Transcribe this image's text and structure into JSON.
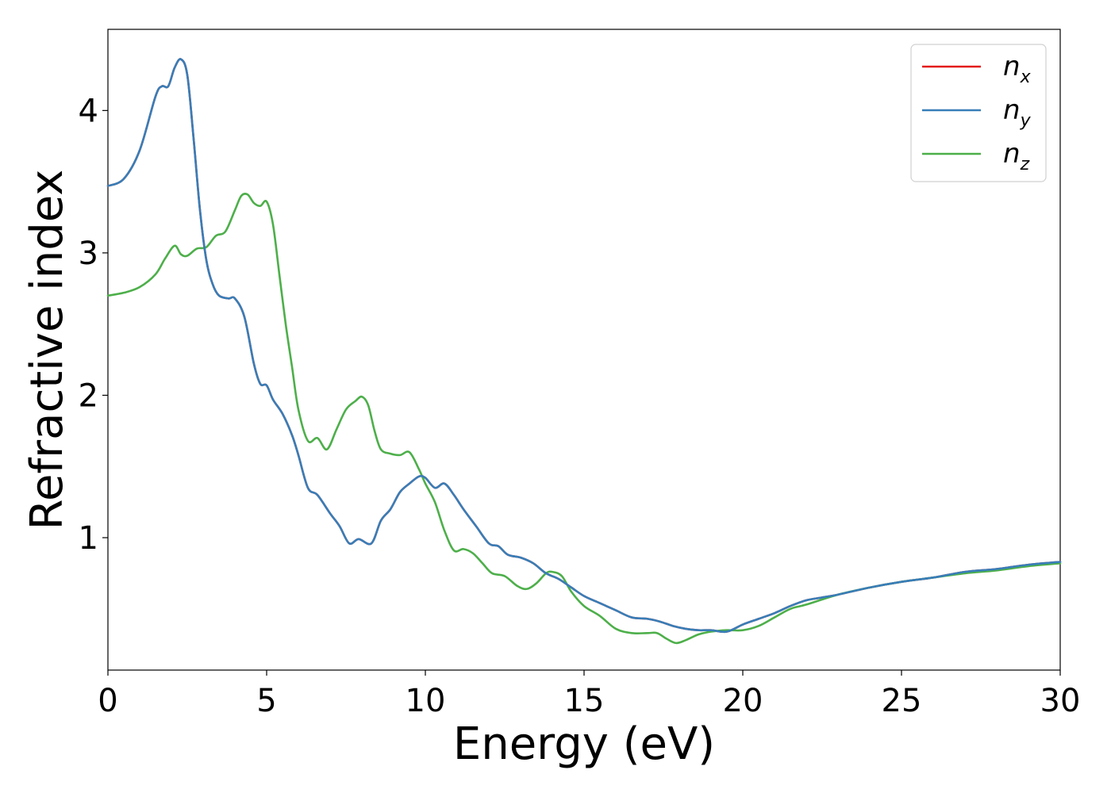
{
  "chart_data": {
    "type": "line",
    "xlabel": "Energy (eV)",
    "ylabel": "Refractive index",
    "xlim": [
      0,
      30
    ],
    "ylim": [
      0.07,
      4.57
    ],
    "xticks": [
      0,
      5,
      10,
      15,
      20,
      25,
      30
    ],
    "yticks": [
      1,
      2,
      3,
      4
    ],
    "grid": false,
    "legend_position": "top-right",
    "series": [
      {
        "name": "n_x",
        "label_base": "n",
        "label_sub": "x",
        "color": "#e41a1c",
        "x": [
          0,
          0.5,
          1.0,
          1.5,
          1.7,
          1.9,
          2.1,
          2.3,
          2.5,
          2.7,
          2.9,
          3.1,
          3.3,
          3.5,
          3.8,
          4.0,
          4.3,
          4.6,
          4.8,
          5.0,
          5.2,
          5.5,
          5.8,
          6.0,
          6.3,
          6.6,
          7.0,
          7.3,
          7.6,
          7.9,
          8.3,
          8.6,
          8.9,
          9.2,
          9.5,
          9.8,
          10.0,
          10.3,
          10.6,
          10.9,
          11.2,
          11.6,
          12.0,
          12.3,
          12.6,
          13.0,
          13.4,
          13.8,
          14.2,
          14.6,
          15.0,
          15.5,
          16.0,
          16.5,
          17.0,
          17.4,
          17.8,
          18.2,
          18.6,
          19.0,
          19.5,
          20.0,
          20.5,
          21.0,
          21.5,
          22.0,
          22.5,
          23.0,
          24.0,
          25.0,
          26.0,
          27.0,
          28.0,
          29.0,
          30.0
        ],
        "y": [
          3.47,
          3.52,
          3.72,
          4.1,
          4.17,
          4.17,
          4.3,
          4.36,
          4.25,
          3.8,
          3.3,
          2.95,
          2.78,
          2.7,
          2.68,
          2.68,
          2.55,
          2.22,
          2.08,
          2.07,
          1.97,
          1.87,
          1.72,
          1.58,
          1.35,
          1.3,
          1.17,
          1.08,
          0.96,
          0.99,
          0.96,
          1.12,
          1.2,
          1.32,
          1.38,
          1.43,
          1.42,
          1.35,
          1.38,
          1.3,
          1.2,
          1.08,
          0.96,
          0.94,
          0.88,
          0.86,
          0.82,
          0.75,
          0.71,
          0.65,
          0.59,
          0.54,
          0.49,
          0.44,
          0.43,
          0.41,
          0.38,
          0.36,
          0.35,
          0.35,
          0.34,
          0.39,
          0.43,
          0.47,
          0.52,
          0.56,
          0.58,
          0.6,
          0.65,
          0.69,
          0.72,
          0.76,
          0.78,
          0.81,
          0.83
        ]
      },
      {
        "name": "n_y",
        "label_base": "n",
        "label_sub": "y",
        "color": "#377eb8",
        "x": [
          0,
          0.5,
          1.0,
          1.5,
          1.7,
          1.9,
          2.1,
          2.3,
          2.5,
          2.7,
          2.9,
          3.1,
          3.3,
          3.5,
          3.8,
          4.0,
          4.3,
          4.6,
          4.8,
          5.0,
          5.2,
          5.5,
          5.8,
          6.0,
          6.3,
          6.6,
          7.0,
          7.3,
          7.6,
          7.9,
          8.3,
          8.6,
          8.9,
          9.2,
          9.5,
          9.8,
          10.0,
          10.3,
          10.6,
          10.9,
          11.2,
          11.6,
          12.0,
          12.3,
          12.6,
          13.0,
          13.4,
          13.8,
          14.2,
          14.6,
          15.0,
          15.5,
          16.0,
          16.5,
          17.0,
          17.4,
          17.8,
          18.2,
          18.6,
          19.0,
          19.5,
          20.0,
          20.5,
          21.0,
          21.5,
          22.0,
          22.5,
          23.0,
          24.0,
          25.0,
          26.0,
          27.0,
          28.0,
          29.0,
          30.0
        ],
        "y": [
          3.47,
          3.52,
          3.72,
          4.1,
          4.17,
          4.17,
          4.3,
          4.36,
          4.25,
          3.8,
          3.3,
          2.95,
          2.78,
          2.7,
          2.68,
          2.68,
          2.55,
          2.22,
          2.08,
          2.07,
          1.97,
          1.87,
          1.72,
          1.58,
          1.35,
          1.3,
          1.17,
          1.08,
          0.96,
          0.99,
          0.96,
          1.12,
          1.2,
          1.32,
          1.38,
          1.43,
          1.42,
          1.35,
          1.38,
          1.3,
          1.2,
          1.08,
          0.96,
          0.94,
          0.88,
          0.86,
          0.82,
          0.75,
          0.71,
          0.65,
          0.59,
          0.54,
          0.49,
          0.44,
          0.43,
          0.41,
          0.38,
          0.36,
          0.35,
          0.35,
          0.34,
          0.39,
          0.43,
          0.47,
          0.52,
          0.56,
          0.58,
          0.6,
          0.65,
          0.69,
          0.72,
          0.76,
          0.78,
          0.81,
          0.83
        ]
      },
      {
        "name": "n_z",
        "label_base": "n",
        "label_sub": "z",
        "color": "#4daf4a",
        "x": [
          0,
          0.5,
          1.0,
          1.5,
          1.8,
          2.1,
          2.3,
          2.5,
          2.8,
          3.1,
          3.4,
          3.7,
          4.0,
          4.2,
          4.4,
          4.6,
          4.8,
          5.0,
          5.2,
          5.4,
          5.6,
          5.8,
          6.0,
          6.3,
          6.6,
          6.9,
          7.2,
          7.5,
          7.8,
          8.0,
          8.2,
          8.4,
          8.6,
          8.9,
          9.2,
          9.5,
          9.8,
          10.0,
          10.3,
          10.6,
          10.9,
          11.2,
          11.5,
          11.8,
          12.1,
          12.5,
          12.9,
          13.2,
          13.5,
          13.8,
          14.0,
          14.3,
          14.6,
          15.0,
          15.5,
          16.0,
          16.5,
          17.0,
          17.3,
          17.6,
          17.9,
          18.2,
          18.6,
          19.0,
          19.5,
          20.0,
          20.5,
          21.0,
          21.5,
          22.0,
          23.0,
          24.0,
          25.0,
          26.0,
          27.0,
          28.0,
          29.0,
          30.0
        ],
        "y": [
          2.7,
          2.72,
          2.76,
          2.85,
          2.96,
          3.05,
          2.99,
          2.98,
          3.03,
          3.04,
          3.12,
          3.15,
          3.3,
          3.4,
          3.41,
          3.35,
          3.33,
          3.36,
          3.2,
          2.85,
          2.5,
          2.2,
          1.9,
          1.68,
          1.7,
          1.62,
          1.76,
          1.9,
          1.96,
          1.99,
          1.93,
          1.75,
          1.62,
          1.59,
          1.58,
          1.6,
          1.48,
          1.38,
          1.25,
          1.05,
          0.91,
          0.92,
          0.89,
          0.82,
          0.75,
          0.73,
          0.66,
          0.64,
          0.68,
          0.75,
          0.76,
          0.73,
          0.62,
          0.52,
          0.45,
          0.36,
          0.33,
          0.33,
          0.33,
          0.29,
          0.26,
          0.28,
          0.32,
          0.34,
          0.35,
          0.35,
          0.38,
          0.44,
          0.5,
          0.53,
          0.6,
          0.65,
          0.69,
          0.72,
          0.75,
          0.77,
          0.8,
          0.82
        ]
      }
    ]
  }
}
